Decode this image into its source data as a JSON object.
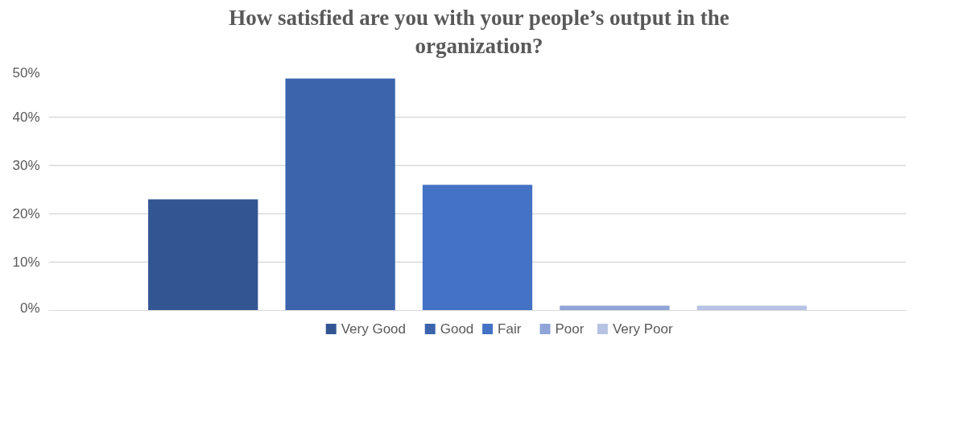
{
  "chart_data": {
    "type": "bar",
    "title": "How satisfied are you with your people’s output in the organization?",
    "categories": [
      null
    ],
    "series": [
      {
        "name": "Very  Good",
        "color": "#335693",
        "values": [
          23
        ]
      },
      {
        "name": "Good",
        "color": "#3b64ad",
        "values": [
          48
        ]
      },
      {
        "name": "Fair",
        "color": "#4472c4",
        "values": [
          26
        ]
      },
      {
        "name": "Poor",
        "color": "#8fa5d7",
        "values": [
          1
        ]
      },
      {
        "name": "Very Poor",
        "color": "#b7c3e3",
        "values": [
          1
        ]
      }
    ],
    "ylim": [
      0,
      50
    ],
    "yticks": [
      {
        "value": 0,
        "label": "0%"
      },
      {
        "value": 10,
        "label": "10%"
      },
      {
        "value": 20,
        "label": "20%"
      },
      {
        "value": 30,
        "label": "30%"
      },
      {
        "value": 40,
        "label": "40%"
      },
      {
        "value": 50,
        "label": "50%"
      }
    ],
    "grid": "y",
    "legend": "bottom"
  }
}
